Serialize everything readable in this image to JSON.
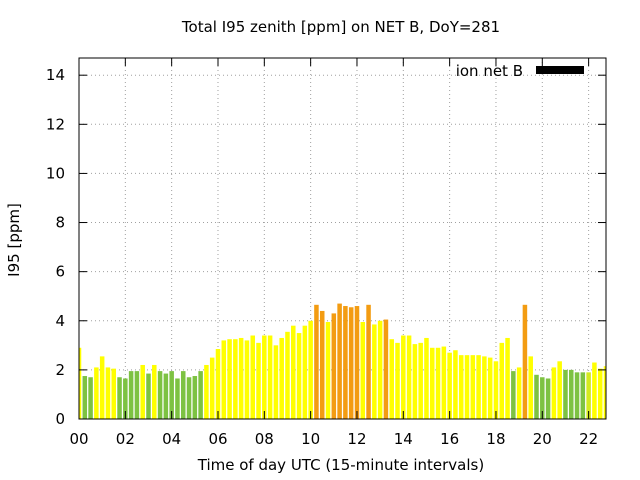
{
  "chart_data": {
    "type": "bar",
    "title": "Total I95 zenith [ppm] on NET B, DoY=281",
    "xlabel": "Time of day UTC (15-minute intervals)",
    "ylabel": "I95 [ppm]",
    "xlim": [
      0,
      22.75
    ],
    "ylim": [
      0,
      14.7
    ],
    "x_ticks": [
      0,
      2,
      4,
      6,
      8,
      10,
      12,
      14,
      16,
      18,
      20,
      22
    ],
    "x_tick_labels": [
      "00",
      "02",
      "04",
      "06",
      "08",
      "10",
      "12",
      "14",
      "16",
      "18",
      "20",
      "22"
    ],
    "y_ticks": [
      0,
      2,
      4,
      6,
      8,
      10,
      12,
      14
    ],
    "grid": true,
    "legend": {
      "position": "top-right",
      "entries": [
        {
          "label": "ion net B",
          "color": "#000000"
        }
      ]
    },
    "colors": {
      "green": "#7dc242",
      "yellow": "#ffff00",
      "yellowgreen": "#d4ea1e",
      "orange": "#f39c12"
    },
    "series": [
      {
        "interval_hours": 0.25,
        "values": [
          2.9,
          1.75,
          1.7,
          2.1,
          2.55,
          2.1,
          2.05,
          1.7,
          1.65,
          1.95,
          1.95,
          2.2,
          1.85,
          2.2,
          1.95,
          1.85,
          1.95,
          1.65,
          1.95,
          1.7,
          1.75,
          1.95,
          2.2,
          2.5,
          2.85,
          3.2,
          3.25,
          3.25,
          3.3,
          3.2,
          3.4,
          3.1,
          3.4,
          3.4,
          3.0,
          3.3,
          3.55,
          3.8,
          3.5,
          3.8,
          4.0,
          4.65,
          4.4,
          3.95,
          4.3,
          4.7,
          4.6,
          4.55,
          4.6,
          3.95,
          4.65,
          3.85,
          4.0,
          4.05,
          3.25,
          3.1,
          3.4,
          3.4,
          3.05,
          3.1,
          3.3,
          2.9,
          2.9,
          2.95,
          2.7,
          2.8,
          2.6,
          2.6,
          2.6,
          2.6,
          2.55,
          2.5,
          2.35,
          3.1,
          3.3,
          1.95,
          2.1,
          4.65,
          2.55,
          1.8,
          1.7,
          1.65,
          2.1,
          2.35,
          2.0,
          2.0,
          1.9,
          1.9,
          1.9,
          2.3,
          2.05,
          2.15
        ],
        "colors": [
          "yellow",
          "green",
          "green",
          "yellow",
          "yellow",
          "yellow",
          "yellow",
          "green",
          "green",
          "green",
          "green",
          "yellow",
          "green",
          "yellow",
          "green",
          "green",
          "green",
          "green",
          "green",
          "green",
          "green",
          "green",
          "yellow",
          "yellow",
          "yellow",
          "yellow",
          "yellow",
          "yellow",
          "yellow",
          "yellow",
          "yellow",
          "yellow",
          "yellow",
          "yellow",
          "yellow",
          "yellow",
          "yellow",
          "yellow",
          "yellow",
          "yellow",
          "yellow",
          "orange",
          "orange",
          "yellow",
          "orange",
          "orange",
          "orange",
          "orange",
          "orange",
          "yellow",
          "orange",
          "yellow",
          "yellow",
          "orange",
          "yellow",
          "yellow",
          "yellow",
          "yellow",
          "yellow",
          "yellow",
          "yellow",
          "yellow",
          "yellow",
          "yellow",
          "yellow",
          "yellow",
          "yellow",
          "yellow",
          "yellow",
          "yellow",
          "yellow",
          "yellow",
          "yellow",
          "yellow",
          "yellow",
          "green",
          "yellow",
          "orange",
          "yellow",
          "green",
          "green",
          "green",
          "yellow",
          "yellow",
          "green",
          "green",
          "green",
          "green",
          "yellowgreen",
          "yellow",
          "yellow",
          "yellow"
        ]
      }
    ]
  }
}
